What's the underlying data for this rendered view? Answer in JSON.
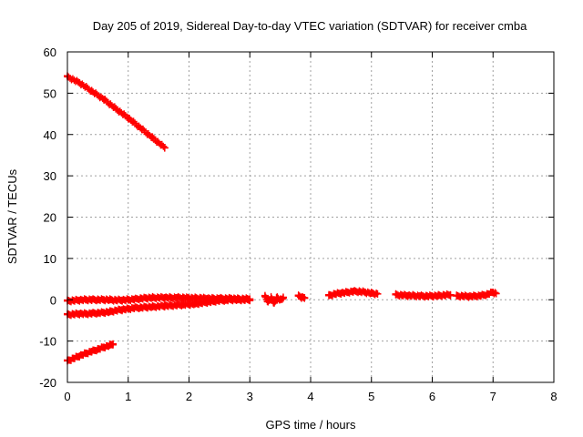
{
  "chart_data": {
    "type": "scatter",
    "title": "Day 205 of 2019, Sidereal Day-to-day VTEC variation (SDTVAR) for receiver cmba",
    "xlabel": "GPS time / hours",
    "ylabel": "SDTVAR / TECUs",
    "xlim": [
      0,
      8
    ],
    "ylim": [
      -20,
      60
    ],
    "xticks": [
      "0",
      "1",
      "2",
      "3",
      "4",
      "5",
      "6",
      "7",
      "8"
    ],
    "yticks": [
      "-20",
      "-10",
      "0",
      "10",
      "20",
      "30",
      "40",
      "50",
      "60"
    ],
    "grid": true,
    "legend": "none",
    "marker": "plus",
    "color": "#ff0000",
    "series": [
      {
        "x": [
          0.0,
          0.2,
          0.4,
          0.6,
          0.8,
          1.0,
          1.2,
          1.4,
          1.6
        ],
        "y": [
          54,
          52.5,
          50.5,
          48.5,
          46.2,
          44,
          41.6,
          39.2,
          36.8
        ]
      },
      {
        "x": [
          0.0,
          0.1,
          0.2,
          0.3,
          0.4,
          0.5,
          0.6,
          0.7,
          0.8,
          0.9,
          1.0,
          1.1,
          1.2,
          1.3,
          1.4,
          1.5,
          1.6,
          1.7,
          1.8,
          1.9,
          2.0,
          2.1,
          2.2,
          2.3,
          2.4,
          2.5,
          2.6,
          2.7,
          2.8,
          2.9,
          3.0
        ],
        "y": [
          -0.3,
          -0.2,
          -0.1,
          0.0,
          0.0,
          0.0,
          0.0,
          0.0,
          -0.1,
          -0.1,
          0.0,
          0.1,
          0.3,
          0.4,
          0.5,
          0.5,
          0.5,
          0.5,
          0.5,
          0.5,
          0.4,
          0.4,
          0.4,
          0.3,
          0.3,
          0.3,
          0.3,
          0.3,
          0.2,
          0.2,
          0.2
        ]
      },
      {
        "x": [
          0.0,
          0.1,
          0.2,
          0.3,
          0.4,
          0.5,
          0.6,
          0.7,
          0.8,
          0.9,
          1.0,
          1.1,
          1.2,
          1.3,
          1.4,
          1.5,
          1.6,
          1.7,
          1.8,
          1.9,
          2.0,
          2.1,
          2.2,
          2.3,
          2.4,
          2.5,
          2.6,
          2.7,
          2.8,
          2.9,
          3.0
        ],
        "y": [
          -3.6,
          -3.5,
          -3.4,
          -3.4,
          -3.3,
          -3.2,
          -3.1,
          -2.9,
          -2.6,
          -2.4,
          -2.2,
          -2.0,
          -1.9,
          -1.8,
          -1.7,
          -1.6,
          -1.5,
          -1.4,
          -1.3,
          -1.2,
          -1.1,
          -1.0,
          -0.8,
          -0.6,
          -0.4,
          -0.2,
          -0.1,
          0.0,
          0.0,
          0.0,
          0.0
        ]
      },
      {
        "x": [
          0.0,
          0.1,
          0.2,
          0.3,
          0.4,
          0.5,
          0.6,
          0.7,
          0.75
        ],
        "y": [
          -14.8,
          -14.2,
          -13.6,
          -13.0,
          -12.5,
          -12.0,
          -11.5,
          -11.0,
          -10.7
        ]
      },
      {
        "x": [
          3.25,
          3.3,
          3.35,
          3.4,
          3.45,
          3.5,
          3.55
        ],
        "y": [
          0.8,
          -0.5,
          0.5,
          -0.8,
          0.6,
          0.0,
          0.4
        ]
      },
      {
        "x": [
          3.8,
          3.85,
          3.9
        ],
        "y": [
          0.9,
          0.6,
          0.5
        ]
      },
      {
        "x": [
          4.3,
          4.4,
          4.5,
          4.6,
          4.7,
          4.8,
          4.9,
          5.0,
          5.1
        ],
        "y": [
          1.0,
          1.4,
          1.6,
          1.8,
          2.0,
          2.0,
          1.8,
          1.6,
          1.4
        ]
      },
      {
        "x": [
          5.4,
          5.5,
          5.6,
          5.7,
          5.8,
          5.9,
          6.0,
          6.1,
          6.2,
          6.3
        ],
        "y": [
          1.2,
          1.1,
          1.0,
          1.0,
          0.9,
          0.9,
          0.9,
          1.0,
          1.1,
          1.2
        ]
      },
      {
        "x": [
          6.4,
          6.5,
          6.6,
          6.7,
          6.8,
          6.9,
          7.0,
          7.05
        ],
        "y": [
          0.9,
          0.9,
          0.8,
          0.9,
          1.0,
          1.3,
          1.8,
          1.5
        ]
      }
    ]
  }
}
